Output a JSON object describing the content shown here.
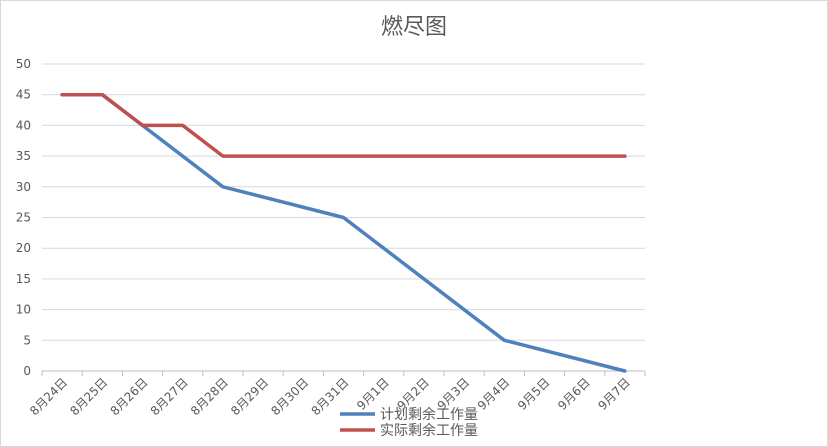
{
  "chart_data": {
    "type": "line",
    "title": "燃尽图",
    "xlabel": "",
    "ylabel": "",
    "categories": [
      "8月24日",
      "8月25日",
      "8月26日",
      "8月27日",
      "8月28日",
      "8月29日",
      "8月30日",
      "8月31日",
      "9月1日",
      "9月2日",
      "9月3日",
      "9月4日",
      "9月5日",
      "9月6日",
      "9月7日"
    ],
    "ylim": [
      0,
      50
    ],
    "yticks": [
      0,
      5,
      10,
      15,
      20,
      25,
      30,
      35,
      40,
      45,
      50
    ],
    "grid": true,
    "legend_position": "bottom",
    "series": [
      {
        "name": "计划剩余工作量",
        "color": "#4f81bd",
        "values": [
          45,
          45,
          40,
          35,
          30,
          null,
          null,
          25,
          null,
          null,
          null,
          5,
          null,
          null,
          0
        ]
      },
      {
        "name": "实际剩余工作量",
        "color": "#c0504d",
        "values": [
          45,
          45,
          40,
          40,
          35,
          35,
          35,
          35,
          35,
          35,
          35,
          35,
          35,
          35,
          35
        ]
      }
    ]
  }
}
